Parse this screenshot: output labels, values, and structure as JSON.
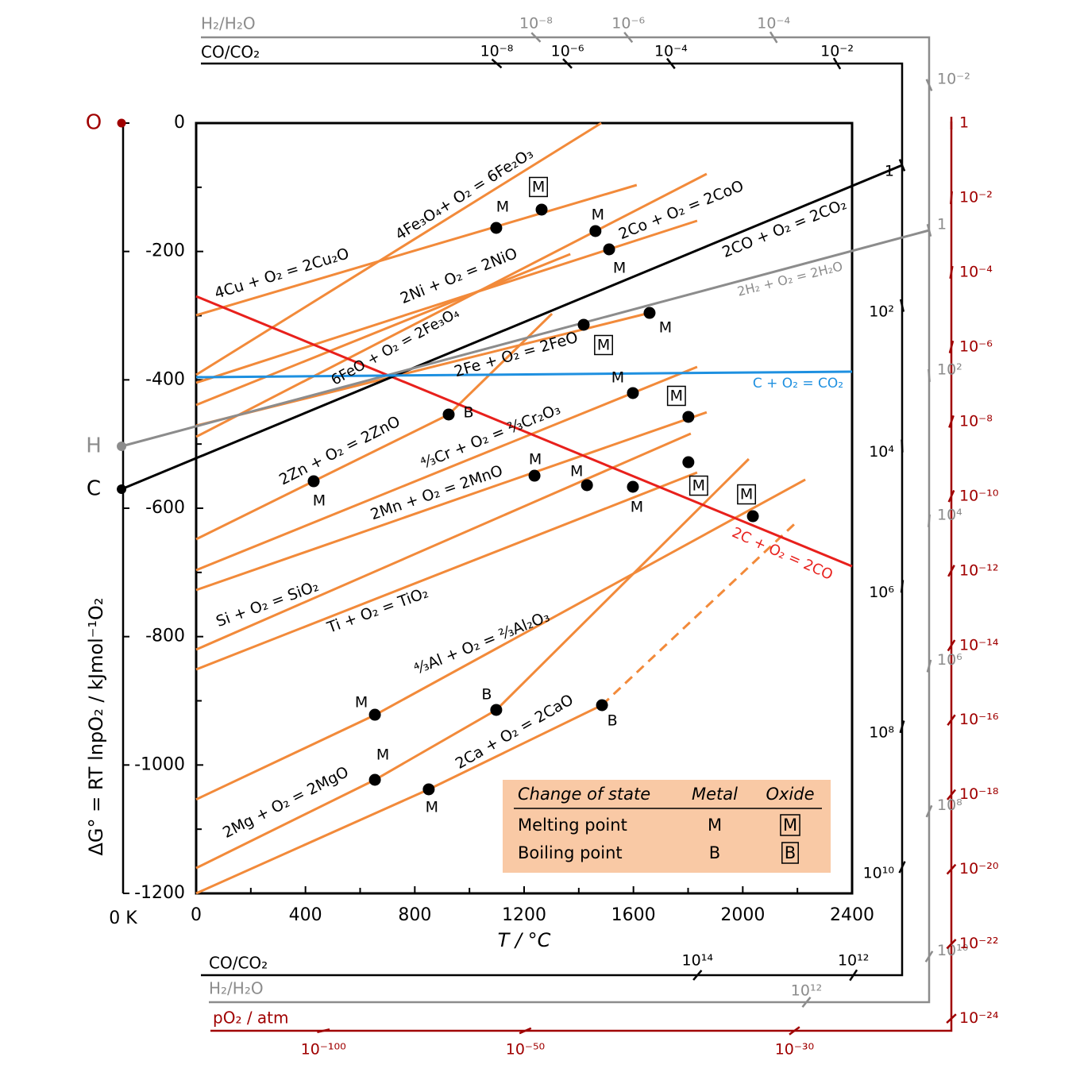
{
  "chart_data": {
    "type": "line",
    "x_label": "T / °C",
    "y_label": "ΔG° = RT lnpO₂  / kJmol⁻¹O₂",
    "xlim": [
      0,
      2400
    ],
    "xticks": [
      0,
      400,
      800,
      1200,
      1600,
      2000,
      2400
    ],
    "xminor_ticks": [
      200,
      600,
      1000,
      1400,
      1800,
      2200
    ],
    "ylim": [
      -1200,
      0
    ],
    "yticks": [
      0,
      -200,
      -400,
      -600,
      -800,
      -1000,
      -1200
    ],
    "yminor_ticks": [
      -100,
      -300,
      -500,
      -700,
      -900,
      -1100
    ],
    "zero_kelvin": {
      "value": -273,
      "label": "0 K"
    },
    "series": [
      {
        "name": "4Cu + O₂ = 2Cu₂O",
        "color": "#f28a3a",
        "x": [
          0,
          1612
        ],
        "values": [
          -299.4,
          -96.5
        ],
        "points": [
          {
            "x": 1098,
            "y": -163.3,
            "label": "M",
            "boxed": false
          },
          {
            "x": 1264,
            "y": -134.8,
            "label": "M",
            "boxed": true
          }
        ]
      },
      {
        "name": "4Fe₃O₄+ O₂ = 6Fe₂O₃",
        "color": "#f28a3a",
        "x": [
          0,
          1482
        ],
        "values": [
          -392.2,
          0
        ],
        "points": []
      },
      {
        "name": "2Ni + O₂ = 2NiO",
        "color": "#f28a3a",
        "x": [
          0,
          1833
        ],
        "values": [
          -404.5,
          -152.2
        ],
        "points": [
          {
            "x": 1511,
            "y": -196.7,
            "label": "M",
            "boxed": false
          }
        ]
      },
      {
        "name": "2Co + O₂ = 2CoO",
        "color": "#f28a3a",
        "x": [
          0,
          1868
        ],
        "values": [
          -488.7,
          -79.2
        ],
        "points": [
          {
            "x": 1461,
            "y": -168.2,
            "label": "M",
            "boxed": false
          }
        ]
      },
      {
        "name": "6FeO + O₂ = 2Fe₃O₄",
        "color": "#f28a3a",
        "x": [
          0,
          1369
        ],
        "values": [
          -439.2,
          -204.1
        ],
        "points": []
      },
      {
        "name": "2Fe + O₂ = 2FeO",
        "color": "#f28a3a",
        "x": [
          0,
          1659
        ],
        "values": [
          -471.3,
          -295.7
        ],
        "points": [
          {
            "x": 1418,
            "y": -314.2,
            "label": "M",
            "boxed": true
          },
          {
            "x": 1659,
            "y": -295.7,
            "label": "M",
            "boxed": false
          }
        ]
      },
      {
        "name": "2Zn + O₂ = 2ZnO",
        "color": "#f28a3a",
        "x": [
          0,
          924,
          1302
        ],
        "values": [
          -648.2,
          -454.0,
          -297.0
        ],
        "points": [
          {
            "x": 430,
            "y": -558.0,
            "label": "M",
            "boxed": false
          },
          {
            "x": 924,
            "y": -454.0,
            "label": "B",
            "boxed": false
          }
        ]
      },
      {
        "name": "⁴⁄₃Cr + O₂ = ²⁄₃Cr₂O₃",
        "color": "#f28a3a",
        "x": [
          0,
          1833
        ],
        "values": [
          -696.5,
          -379.8
        ],
        "points": [
          {
            "x": 1598,
            "y": -420.6,
            "label": "M",
            "boxed": false
          }
        ]
      },
      {
        "name": "2Mn + O₂ = 2MnO",
        "color": "#f28a3a",
        "x": [
          0,
          1868
        ],
        "values": [
          -727.4,
          -450.5
        ],
        "points": [
          {
            "x": 1238,
            "y": -549.3,
            "label": "M",
            "boxed": false
          },
          {
            "x": 1801,
            "y": -457.7,
            "label": "M",
            "boxed": true
          }
        ]
      },
      {
        "name": "Si + O₂ = SiO₂",
        "color": "#f28a3a",
        "x": [
          0,
          1810
        ],
        "values": [
          -820.2,
          -483.7
        ],
        "points": [
          {
            "x": 1430,
            "y": -564.1,
            "label": "M",
            "boxed": false
          }
        ]
      },
      {
        "name": "Ti + O₂ = TiO₂",
        "color": "#f28a3a",
        "x": [
          0,
          1833
        ],
        "values": [
          -851.1,
          -544.3
        ],
        "points": [
          {
            "x": 1598,
            "y": -566.6,
            "label": "M",
            "boxed": false
          },
          {
            "x": 1801,
            "y": -528.3,
            "label": "M",
            "boxed": true
          }
        ]
      },
      {
        "name": "⁴⁄₃Al + O₂ = ²⁄₃Al₂O₃",
        "color": "#f28a3a",
        "x": [
          0,
          654,
          2229
        ],
        "values": [
          -1053.6,
          -922.2,
          -555.3
        ],
        "points": [
          {
            "x": 654,
            "y": -921.7,
            "label": "M",
            "boxed": false
          },
          {
            "x": 2037,
            "y": -612.4,
            "label": "M",
            "boxed": true
          }
        ]
      },
      {
        "name": "2Mg + O₂ = 2MgO",
        "color": "#f28a3a",
        "x": [
          0,
          654,
          1098,
          2022
        ],
        "values": [
          -1160.5,
          -1023.1,
          -914.2,
          -523.3
        ],
        "points": [
          {
            "x": 654,
            "y": -1023.1,
            "label": "M",
            "boxed": false
          },
          {
            "x": 1098,
            "y": -914.2,
            "label": "B",
            "boxed": false
          }
        ]
      },
      {
        "name": "2Ca + O₂ = 2CaO",
        "color": "#f28a3a",
        "x": [
          0,
          851,
          1485
        ],
        "values": [
          -1200,
          -1037.9,
          -906.7
        ],
        "dashed_x": [
          1485,
          2203
        ],
        "dashed_values": [
          -906.7,
          -619.0
        ],
        "points": [
          {
            "x": 851,
            "y": -1037.9,
            "label": "M",
            "boxed": false
          },
          {
            "x": 1485,
            "y": -906.8,
            "label": "B",
            "boxed": false
          }
        ]
      },
      {
        "name": "2C + O₂ = 2CO",
        "color": "#e8201c",
        "x": [
          0,
          2400
        ],
        "values": [
          -269.8,
          -690.4
        ],
        "points": []
      },
      {
        "name": "2CO + O₂ = 2CO₂",
        "color": "#000000",
        "x": [
          -273,
          2583
        ],
        "values": [
          -570.3,
          -65.6
        ],
        "points": [],
        "pivot_label": "C",
        "ratio_scale": {
          "title": "CO/CO₂",
          "top_ticks": [
            {
              "value": 1e-08,
              "label": "10⁻⁸"
            },
            {
              "value": 1e-06,
              "label": "10⁻⁶"
            },
            {
              "value": 0.0001,
              "label": "10⁻⁴"
            },
            {
              "value": 0.01,
              "label": "10⁻²"
            }
          ],
          "right_ticks": [
            1,
            {
              "value": 100.0,
              "label": "10²"
            },
            {
              "value": 10000.0,
              "label": "10⁴"
            },
            {
              "value": 1000000.0,
              "label": "10⁶"
            },
            {
              "value": 100000000.0,
              "label": "10⁸"
            },
            {
              "value": 10000000000.0,
              "label": "10¹⁰"
            }
          ],
          "bottom_ticks": [
            {
              "value": 100000000000000.0,
              "label": "10¹⁴"
            },
            {
              "value": 1000000000000.0,
              "label": "10¹²"
            }
          ]
        }
      },
      {
        "name": "2H₂ + O₂ = 2H₂O",
        "color": "#8c8c8c",
        "x": [
          -273,
          2682
        ],
        "values": [
          -503.5,
          -167.0
        ],
        "points": [],
        "pivot_label": "H",
        "ratio_scale": {
          "title": "H₂/H₂O",
          "top_ticks": [
            {
              "value": 1e-08,
              "label": "10⁻⁸"
            },
            {
              "value": 1e-06,
              "label": "10⁻⁶"
            },
            {
              "value": 0.0001,
              "label": "10⁻⁴"
            }
          ],
          "right_ticks": [
            {
              "value": 0.01,
              "label": "10⁻²"
            },
            1,
            {
              "value": 100.0,
              "label": "10²"
            },
            {
              "value": 10000.0,
              "label": "10⁴"
            },
            {
              "value": 1000000.0,
              "label": "10⁶"
            },
            {
              "value": 100000000.0,
              "label": "10⁸"
            },
            {
              "value": 10000000000.0,
              "label": "10¹⁰"
            }
          ],
          "bottom_ticks": [
            {
              "value": 1000000000000.0,
              "label": "10¹²"
            }
          ]
        }
      },
      {
        "name": "C + O₂ = CO₂",
        "color": "#1e90e0",
        "x": [
          0,
          2400
        ],
        "values": [
          -395.9,
          -387.2
        ],
        "points": []
      }
    ],
    "oxygen_scale": {
      "title": "pO₂  / atm",
      "pivot_label": "O",
      "color": "#a00000",
      "right_ticks": [
        1,
        {
          "value": 0.01,
          "label": "10⁻²"
        },
        {
          "value": 0.0001,
          "label": "10⁻⁴"
        },
        {
          "value": 1e-06,
          "label": "10⁻⁶"
        },
        {
          "value": 1e-08,
          "label": "10⁻⁸"
        },
        {
          "value": 1e-10,
          "label": "10⁻¹⁰"
        },
        {
          "value": 1e-12,
          "label": "10⁻¹²"
        },
        {
          "value": 1e-14,
          "label": "10⁻¹⁴"
        },
        {
          "value": 1e-16,
          "label": "10⁻¹⁶"
        },
        {
          "value": 1e-18,
          "label": "10⁻¹⁸"
        },
        {
          "value": 1e-20,
          "label": "10⁻²⁰"
        },
        {
          "value": 1e-22,
          "label": "10⁻²²"
        },
        {
          "value": 1e-24,
          "label": "10⁻²⁴"
        }
      ],
      "bottom_ticks": [
        {
          "value": 1e-100,
          "label": "10⁻¹⁰⁰"
        },
        {
          "value": 1e-50,
          "label": "10⁻⁵⁰"
        },
        {
          "value": 1e-30,
          "label": "10⁻³⁰"
        }
      ]
    },
    "legend_table": {
      "header": [
        "Change of state",
        "Metal",
        "Oxide"
      ],
      "rows": [
        [
          "Melting point",
          "M",
          "M"
        ],
        [
          "Boiling point",
          "B",
          "B"
        ]
      ]
    }
  }
}
